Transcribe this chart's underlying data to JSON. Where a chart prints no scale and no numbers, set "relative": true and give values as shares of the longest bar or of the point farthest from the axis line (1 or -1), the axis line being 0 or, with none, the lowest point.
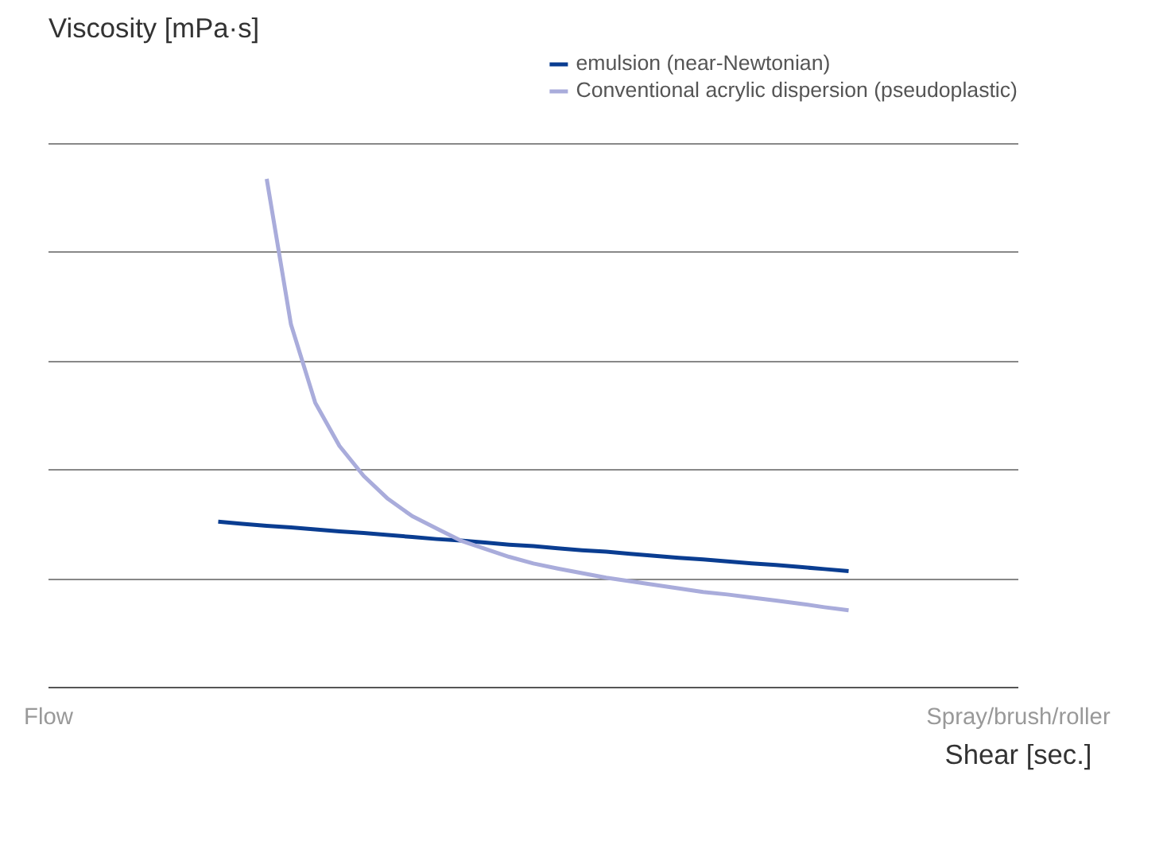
{
  "chart_data": {
    "type": "line",
    "relative": true,
    "ylabel": "Viscosity [mPa·s]",
    "xlabel": "Shear [sec.]",
    "grid": "y",
    "legend": "top right",
    "marker": "none",
    "line_style": "solid",
    "categories": [
      "Flow",
      null,
      null,
      null,
      null,
      null,
      null,
      null,
      null,
      null,
      null,
      null,
      null,
      null,
      null,
      null,
      null,
      null,
      null,
      null,
      null,
      null,
      null,
      null,
      null,
      null,
      null,
      null,
      null,
      null,
      null,
      null,
      null,
      null,
      null,
      null,
      null,
      null,
      null,
      null,
      "Spray/brush/roller"
    ],
    "series": [
      {
        "name": "emulsion (near-Newtonian)",
        "color": "#0a3d91",
        "values": [
          null,
          null,
          null,
          null,
          null,
          null,
          null,
          0.326,
          0.322,
          0.318,
          0.315,
          0.311,
          0.307,
          0.304,
          0.3,
          0.296,
          0.292,
          0.289,
          0.285,
          0.281,
          0.278,
          0.274,
          0.27,
          0.267,
          0.263,
          0.259,
          0.255,
          0.252,
          0.248,
          0.244,
          0.241,
          0.237,
          0.233,
          0.229,
          null,
          null,
          null,
          null,
          null,
          null,
          null
        ]
      },
      {
        "name": "Conventional acrylic dispersion (pseudoplastic)",
        "color": "#a9acdb",
        "values": [
          null,
          null,
          null,
          null,
          null,
          null,
          null,
          null,
          null,
          1,
          0.714,
          0.56,
          0.475,
          0.416,
          0.371,
          0.337,
          0.313,
          0.289,
          0.273,
          0.257,
          0.244,
          0.234,
          0.225,
          0.216,
          0.209,
          0.202,
          0.195,
          0.188,
          0.183,
          0.177,
          0.171,
          0.165,
          0.158,
          0.152,
          null,
          null,
          null,
          null,
          null,
          null,
          null
        ]
      }
    ]
  }
}
